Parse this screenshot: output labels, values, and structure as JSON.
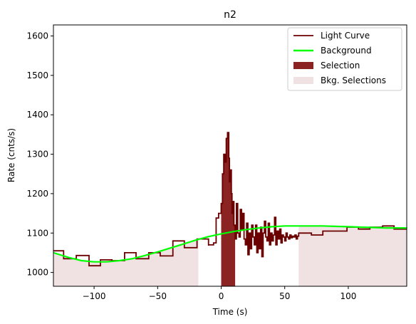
{
  "chart_data": {
    "type": "line",
    "title": "n2",
    "xlabel": "Time (s)",
    "ylabel": "Rate (cnts/s)",
    "xlim": [
      -132,
      146
    ],
    "ylim": [
      965,
      1628
    ],
    "x_ticks": [
      -100,
      -50,
      0,
      50,
      100
    ],
    "y_ticks": [
      1000,
      1100,
      1200,
      1300,
      1400,
      1500,
      1600
    ],
    "grid": false,
    "legend_position": "top-right",
    "colors": {
      "light_curve": "#6b0000",
      "background": "#00ff00",
      "selection": "#8b2323",
      "bkg_selection": "#f0e2e2"
    },
    "legend": [
      {
        "label": "Light Curve",
        "kind": "line",
        "color": "#6b0000"
      },
      {
        "label": "Background",
        "kind": "line",
        "color": "#00ff00"
      },
      {
        "label": "Selection",
        "kind": "patch",
        "color": "#8b2323"
      },
      {
        "label": "Bkg. Selections",
        "kind": "patch",
        "color": "#f0e2e2"
      }
    ],
    "light_curve": {
      "name": "Light Curve",
      "x": [
        -132,
        -124,
        -114,
        -104,
        -95,
        -86,
        -76,
        -67,
        -57,
        -48,
        -38,
        -29,
        -19,
        -10,
        -10,
        -6,
        -4,
        -2,
        0,
        1,
        2,
        3,
        4,
        5,
        6,
        6.5,
        7,
        7.5,
        8,
        8.5,
        9,
        9.5,
        10,
        11,
        12,
        13,
        14,
        15,
        16,
        17,
        18,
        19,
        20,
        21,
        22,
        23,
        24,
        25,
        26,
        27,
        28,
        29,
        30,
        31,
        32,
        33,
        34,
        35,
        36,
        37,
        38,
        39,
        40,
        41,
        42,
        43,
        44,
        45,
        46,
        47,
        48,
        49,
        50,
        51,
        52,
        53,
        54,
        55,
        56,
        57,
        58,
        59,
        60,
        61,
        71,
        80,
        89,
        99,
        108,
        117,
        127,
        136,
        146
      ],
      "y": [
        1055,
        1035,
        1043,
        1017,
        1032,
        1030,
        1050,
        1035,
        1050,
        1042,
        1080,
        1063,
        1085,
        1068,
        1070,
        1075,
        1138,
        1150,
        1175,
        1250,
        1300,
        1280,
        1340,
        1355,
        1290,
        1230,
        1240,
        1260,
        1200,
        1150,
        1170,
        1180,
        1120,
        1085,
        1175,
        1100,
        1090,
        1160,
        1110,
        1150,
        1085,
        1070,
        1125,
        1045,
        1100,
        1060,
        1120,
        1090,
        1070,
        1120,
        1050,
        1100,
        1060,
        1115,
        1040,
        1100,
        1130,
        1090,
        1080,
        1125,
        1070,
        1100,
        1080,
        1095,
        1140,
        1070,
        1105,
        1085,
        1110,
        1075,
        1095,
        1090,
        1080,
        1100,
        1090,
        1085,
        1095,
        1088,
        1092,
        1090,
        1095,
        1085,
        1092,
        1100,
        1095,
        1105,
        1105,
        1115,
        1110,
        1115,
        1118,
        1110,
        1115
      ]
    },
    "background": {
      "name": "Background",
      "x": [
        -132,
        -120,
        -110,
        -100,
        -90,
        -80,
        -70,
        -60,
        -50,
        -40,
        -30,
        -20,
        -10,
        0,
        10,
        20,
        30,
        40,
        50,
        60,
        70,
        80,
        90,
        100,
        110,
        120,
        130,
        140,
        146
      ],
      "y": [
        1050,
        1038,
        1030,
        1027,
        1027,
        1030,
        1035,
        1043,
        1052,
        1062,
        1072,
        1082,
        1091,
        1098,
        1104,
        1109,
        1113,
        1116,
        1118,
        1118,
        1118,
        1118,
        1117,
        1116,
        1115,
        1114,
        1113,
        1113,
        1113
      ]
    },
    "selection": {
      "name": "Selection",
      "x_range": [
        0,
        11
      ]
    },
    "bkg_selections": [
      {
        "name": "Bkg. Selections",
        "x_range": [
          -132,
          -18
        ]
      },
      {
        "name": "Bkg. Selections",
        "x_range": [
          61,
          146
        ]
      }
    ]
  }
}
